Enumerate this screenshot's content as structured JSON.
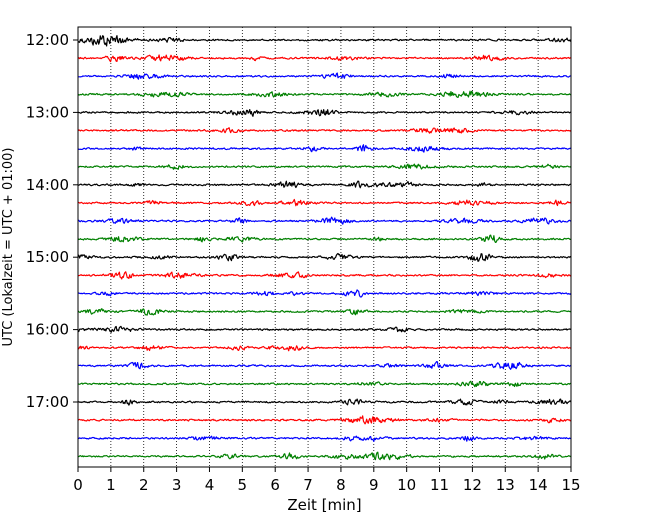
{
  "chart_data": {
    "type": "line",
    "title": "",
    "xlabel": "Zeit  [min]",
    "ylabel": "UTC (Lokalzeit = UTC + 01:00)",
    "xlim": [
      0,
      15
    ],
    "x_ticks": [
      0,
      1,
      2,
      3,
      4,
      5,
      6,
      7,
      8,
      9,
      10,
      11,
      12,
      13,
      14,
      15
    ],
    "x_tick_labels": [
      "0",
      "1",
      "2",
      "3",
      "4",
      "5",
      "6",
      "7",
      "8",
      "9",
      "10",
      "11",
      "12",
      "13",
      "14",
      "15"
    ],
    "y_tick_labels": [
      "12:00",
      "13:00",
      "14:00",
      "15:00",
      "16:00",
      "17:00"
    ],
    "x_grid": "vertical dotted at each minute",
    "trace_start_times": [
      "12:00",
      "12:15",
      "12:30",
      "12:45",
      "13:00",
      "13:15",
      "13:30",
      "13:45",
      "14:00",
      "14:15",
      "14:30",
      "14:45",
      "15:00",
      "15:15",
      "15:30",
      "15:45",
      "16:00",
      "16:15",
      "16:30",
      "16:45",
      "17:00",
      "17:15",
      "17:30",
      "17:45"
    ],
    "trace_duration_min": 15,
    "color_cycle": [
      "#000000",
      "#ff0000",
      "#0000ff",
      "#008000"
    ],
    "amplitude_units": "relative"
  }
}
